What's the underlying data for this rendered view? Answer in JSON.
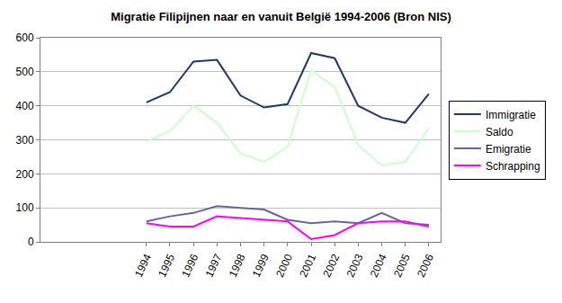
{
  "chart_data": {
    "type": "line",
    "title": "Migratie Filipijnen naar en vanuit België 1994-2006 (Bron NIS)",
    "categories": [
      null,
      null,
      null,
      null,
      "1994",
      "1995",
      "1996",
      "1997",
      "1998",
      "1999",
      "2000",
      "2001",
      "2002",
      "2003",
      "2004",
      "2005",
      "2006"
    ],
    "series": [
      {
        "name": "Immigratie",
        "color": "#1f3a64",
        "values": [
          null,
          null,
          null,
          null,
          410,
          440,
          530,
          535,
          430,
          395,
          405,
          555,
          540,
          400,
          365,
          350,
          435
        ]
      },
      {
        "name": "Saldo",
        "color": "#ccffcc",
        "values": [
          null,
          null,
          null,
          null,
          295,
          325,
          400,
          350,
          260,
          235,
          280,
          505,
          455,
          285,
          225,
          235,
          335
        ]
      },
      {
        "name": "Emigratie",
        "color": "#666699",
        "values": [
          null,
          null,
          null,
          null,
          60,
          75,
          85,
          105,
          100,
          95,
          65,
          55,
          60,
          55,
          85,
          55,
          50
        ]
      },
      {
        "name": "Schrapping",
        "color": "#ff00ff",
        "values": [
          null,
          null,
          null,
          null,
          55,
          45,
          45,
          75,
          70,
          65,
          60,
          8,
          20,
          55,
          60,
          60,
          45
        ]
      }
    ],
    "ylim": [
      0,
      600
    ],
    "yticks": [
      0,
      100,
      200,
      300,
      400,
      500,
      600
    ],
    "grid": true,
    "legend": "right"
  }
}
